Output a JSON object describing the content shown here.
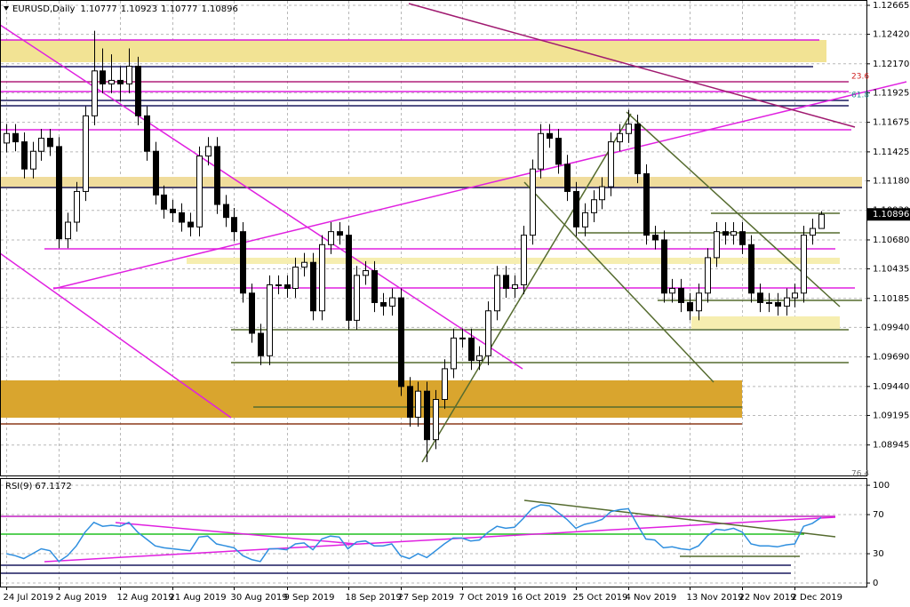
{
  "header": {
    "symbol": "EURUSD,Daily"
  },
  "chart_data": [
    {
      "type": "candlestick",
      "categories": [
        "24 Jul 2019",
        null,
        null,
        null,
        null,
        null,
        "2 Aug 2019",
        null,
        null,
        null,
        null,
        null,
        null,
        "12 Aug 2019",
        null,
        null,
        null,
        null,
        null,
        "21 Aug 2019",
        null,
        null,
        null,
        null,
        null,
        null,
        "30 Aug 2019",
        null,
        null,
        null,
        null,
        null,
        "9 Sep 2019",
        null,
        null,
        null,
        null,
        null,
        null,
        "18 Sep 2019",
        null,
        null,
        null,
        null,
        null,
        "27 Sep 2019",
        null,
        null,
        null,
        null,
        null,
        null,
        "7 Oct 2019",
        null,
        null,
        null,
        null,
        null,
        "16 Oct 2019",
        null,
        null,
        null,
        null,
        null,
        null,
        "25 Oct 2019",
        null,
        null,
        null,
        null,
        null,
        "4 Nov 2019",
        null,
        null,
        null,
        null,
        null,
        null,
        "13 Nov 2019",
        null,
        null,
        null,
        null,
        null,
        "22 Nov 2019",
        null,
        null,
        null,
        null,
        null,
        "2 Dec 2019",
        null,
        null,
        null
      ],
      "open": [
        1.115,
        1.1158,
        1.1151,
        1.1128,
        1.1143,
        1.1154,
        1.1147,
        1.1069,
        1.1083,
        1.1109,
        1.1173,
        1.1211,
        1.12,
        1.1203,
        1.12,
        1.1215,
        1.1173,
        1.1143,
        1.1106,
        1.1094,
        1.1091,
        1.1083,
        1.1079,
        1.1139,
        1.1147,
        1.1098,
        1.1087,
        1.1075,
        1.1023,
        1.0989,
        1.097,
        1.103,
        1.103,
        1.1027,
        1.1045,
        1.1049,
        1.1008,
        1.1064,
        1.1075,
        1.1072,
        1.1,
        1.1038,
        1.1042,
        1.1015,
        1.1012,
        1.1019,
        1.0944,
        1.0918,
        1.094,
        1.0899,
        1.0933,
        1.0959,
        1.0985,
        1.0985,
        1.0966,
        1.097,
        1.1008,
        1.1038,
        1.1027,
        1.103,
        1.1072,
        1.1128,
        1.1158,
        1.1154,
        1.1132,
        1.1109,
        1.1079,
        1.1091,
        1.1102,
        1.1113,
        1.1151,
        1.1158,
        1.1166,
        1.1124,
        1.1072,
        1.1068,
        1.1023,
        1.1027,
        1.1015,
        1.1008,
        1.1023,
        1.1053,
        1.1075,
        1.1072,
        1.1075,
        1.1064,
        1.1023,
        1.1015,
        1.1015,
        1.1012,
        1.1019,
        1.1023,
        1.1072,
        1.10777
      ],
      "high": [
        1.1166,
        1.1166,
        1.1159,
        1.1151,
        1.1162,
        1.1162,
        1.1155,
        1.1091,
        1.1117,
        1.1181,
        1.1245,
        1.123,
        1.1225,
        1.1215,
        1.123,
        1.1223,
        1.1181,
        1.1151,
        1.1114,
        1.1102,
        1.1099,
        1.1091,
        1.1147,
        1.1155,
        1.1155,
        1.1106,
        1.1095,
        1.1083,
        1.1031,
        1.0997,
        1.1038,
        1.1038,
        1.1038,
        1.1053,
        1.1057,
        1.1057,
        1.1072,
        1.1083,
        1.1083,
        1.108,
        1.1046,
        1.105,
        1.105,
        1.1023,
        1.1027,
        1.1027,
        1.0952,
        1.0948,
        1.0948,
        1.0941,
        1.0967,
        1.0993,
        1.0993,
        1.0993,
        1.0978,
        1.1016,
        1.1046,
        1.1046,
        1.1038,
        1.108,
        1.1136,
        1.1166,
        1.1166,
        1.1162,
        1.114,
        1.1117,
        1.1099,
        1.111,
        1.1121,
        1.1159,
        1.1166,
        1.1178,
        1.1174,
        1.1132,
        1.108,
        1.1076,
        1.1035,
        1.1035,
        1.1023,
        1.1031,
        1.1061,
        1.1083,
        1.1083,
        1.1083,
        1.1083,
        1.1072,
        1.1031,
        1.1023,
        1.1023,
        1.1027,
        1.1031,
        1.108,
        1.1086,
        1.10923
      ],
      "low": [
        1.1142,
        1.1143,
        1.112,
        1.112,
        1.1135,
        1.1139,
        1.1061,
        1.1061,
        1.1075,
        1.1101,
        1.1165,
        1.1192,
        1.1192,
        1.1185,
        1.1192,
        1.1165,
        1.1135,
        1.1098,
        1.1086,
        1.1083,
        1.1075,
        1.1071,
        1.1071,
        1.1131,
        1.109,
        1.1079,
        1.1067,
        1.1015,
        1.0981,
        1.0962,
        1.0962,
        1.1022,
        1.1019,
        1.1019,
        1.1037,
        1.1,
        1.1,
        1.1056,
        1.1064,
        1.0992,
        1.0992,
        1.103,
        1.1007,
        1.1004,
        1.1004,
        1.0936,
        1.091,
        1.091,
        1.088,
        1.0891,
        1.0925,
        1.0951,
        1.0977,
        1.0958,
        1.0958,
        1.0962,
        1.1,
        1.1019,
        1.1019,
        1.1022,
        1.1064,
        1.112,
        1.1146,
        1.1124,
        1.1101,
        1.1071,
        1.1071,
        1.1083,
        1.1094,
        1.1105,
        1.1143,
        1.115,
        1.1116,
        1.1064,
        1.106,
        1.1015,
        1.1015,
        1.1007,
        1.1,
        1.1,
        1.1015,
        1.1045,
        1.1064,
        1.1064,
        1.1056,
        1.1015,
        1.1007,
        1.1007,
        1.1004,
        1.1004,
        1.1011,
        1.1015,
        1.1064,
        1.10777
      ],
      "close": [
        1.1158,
        1.1151,
        1.1128,
        1.1143,
        1.1154,
        1.1147,
        1.1069,
        1.1083,
        1.1109,
        1.1173,
        1.1211,
        1.12,
        1.1203,
        1.12,
        1.1215,
        1.1173,
        1.1143,
        1.1106,
        1.1094,
        1.1091,
        1.1083,
        1.1079,
        1.1139,
        1.1147,
        1.1098,
        1.1087,
        1.1075,
        1.1023,
        1.0989,
        1.097,
        1.103,
        1.103,
        1.1027,
        1.1045,
        1.1049,
        1.1008,
        1.1064,
        1.1075,
        1.1072,
        1.1,
        1.1038,
        1.1042,
        1.1015,
        1.1012,
        1.1019,
        1.0944,
        1.0918,
        1.094,
        1.0899,
        1.0933,
        1.0959,
        1.0985,
        1.0985,
        1.0966,
        1.097,
        1.1008,
        1.1038,
        1.1027,
        1.103,
        1.1072,
        1.1128,
        1.1158,
        1.1154,
        1.1132,
        1.1109,
        1.1079,
        1.1091,
        1.1102,
        1.1113,
        1.1151,
        1.1158,
        1.1166,
        1.1124,
        1.1072,
        1.1068,
        1.1023,
        1.1027,
        1.1015,
        1.1008,
        1.1023,
        1.1053,
        1.1075,
        1.1072,
        1.1075,
        1.1064,
        1.1023,
        1.1015,
        1.1015,
        1.1012,
        1.1019,
        1.1023,
        1.1072,
        1.10777,
        1.10896
      ],
      "ylim": [
        1.08687,
        1.1271
      ],
      "yticks": [
        1.12665,
        {
          "value": 1.1242,
          "label": "1.12420"
        },
        {
          "value": 1.1217,
          "label": "1.12170"
        },
        1.11925,
        1.11675,
        1.11425,
        {
          "value": 1.1118,
          "label": "1.11180"
        },
        {
          "value": 1.1093,
          "label": "1.10930"
        },
        {
          "value": 1.1068,
          "label": "1.10680"
        },
        1.10435,
        1.10185,
        {
          "value": 1.0994,
          "label": "1.09940"
        },
        {
          "value": 1.0969,
          "label": "1.09690"
        },
        {
          "value": 1.0944,
          "label": "1.09440"
        },
        1.09195,
        1.08945
      ],
      "annotations": [
        "23.6",
        "61.8",
        "76.4"
      ],
      "grid": true
    },
    {
      "type": "line",
      "series": [
        {
          "name": "RSI(9)",
          "color": "#2f8fdf",
          "values": [
            30,
            28,
            25,
            30,
            35,
            33,
            22,
            28,
            38,
            52,
            62,
            58,
            59,
            58,
            62,
            52,
            45,
            38,
            36,
            35,
            34,
            33,
            47,
            48,
            40,
            38,
            36,
            28,
            24,
            22,
            35,
            35,
            34,
            40,
            41,
            34,
            45,
            48,
            47,
            35,
            42,
            43,
            38,
            38,
            40,
            28,
            25,
            30,
            26,
            33,
            40,
            46,
            46,
            43,
            44,
            52,
            58,
            56,
            57,
            66,
            76,
            80,
            79,
            72,
            65,
            56,
            60,
            62,
            65,
            73,
            75,
            76,
            60,
            45,
            44,
            36,
            37,
            35,
            34,
            38,
            48,
            55,
            54,
            56,
            52,
            40,
            38,
            38,
            37,
            39,
            40,
            58,
            61,
            67.1172
          ]
        }
      ],
      "ylim": [
        -3.6,
        105.5
      ],
      "yticks": [
        0,
        30,
        70,
        100
      ],
      "grid": true
    }
  ]
}
